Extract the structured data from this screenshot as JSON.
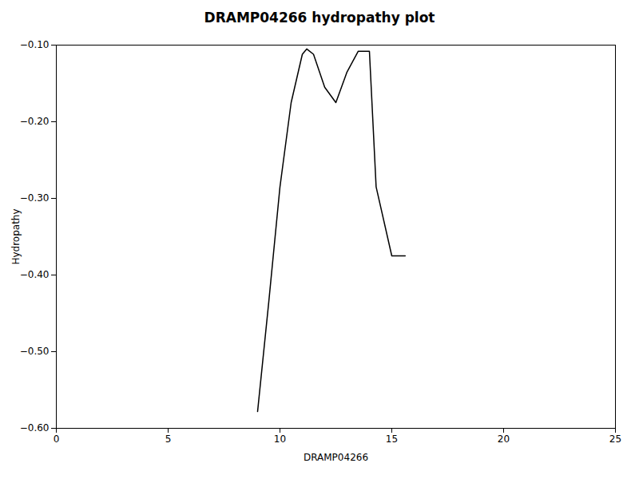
{
  "chart_data": {
    "type": "line",
    "title": "DRAMP04266 hydropathy plot",
    "xlabel": "DRAMP04266",
    "ylabel": "Hydropathy",
    "x": [
      9.0,
      9.5,
      10.0,
      10.5,
      11.0,
      11.2,
      11.5,
      12.0,
      12.5,
      13.0,
      13.5,
      14.0,
      14.3,
      15.0,
      15.6
    ],
    "values": [
      -0.578,
      -0.435,
      -0.285,
      -0.175,
      -0.112,
      -0.105,
      -0.112,
      -0.155,
      -0.175,
      -0.135,
      -0.108,
      -0.108,
      -0.285,
      -0.375,
      -0.375
    ],
    "color": "#000000",
    "xlim": [
      0,
      25
    ],
    "xticks": [
      0,
      5,
      10,
      15,
      20,
      25
    ],
    "ylim": [
      -0.6,
      -0.1
    ],
    "yticks": [
      -0.6,
      -0.5,
      -0.4,
      -0.3,
      -0.2,
      -0.1
    ],
    "grid": false
  }
}
